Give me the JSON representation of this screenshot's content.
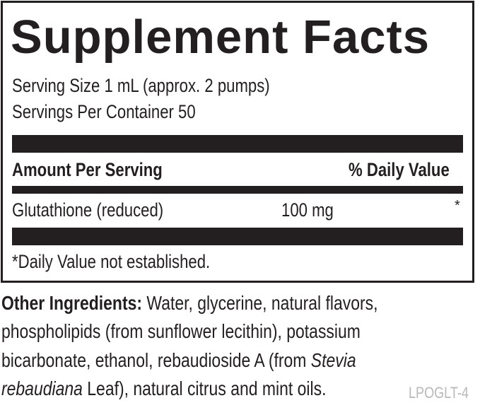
{
  "title": "Supplement Facts",
  "serving_size": "Serving Size 1 mL (approx. 2 pumps)",
  "servings_per_container": "Servings Per Container 50",
  "header": {
    "amount": "Amount Per Serving",
    "daily_value": "% Daily Value"
  },
  "rows": [
    {
      "name": "Glutathione (reduced)",
      "amount": "100 mg",
      "dv": "*"
    }
  ],
  "footnote": "*Daily Value not established.",
  "other_ingredients": {
    "label": "Other Ingredients:",
    "line1": " Water, glycerine, natural flavors,",
    "line2": "phospholipids (from sunflower lecithin), potassium",
    "line3_a": "bicarbonate, ethanol, rebaudioside A (from ",
    "line3_b": "Stevia",
    "line4_a": "rebaudiana",
    "line4_b": " Leaf), natural citrus and mint oils."
  },
  "code": "LPOGLT-4"
}
